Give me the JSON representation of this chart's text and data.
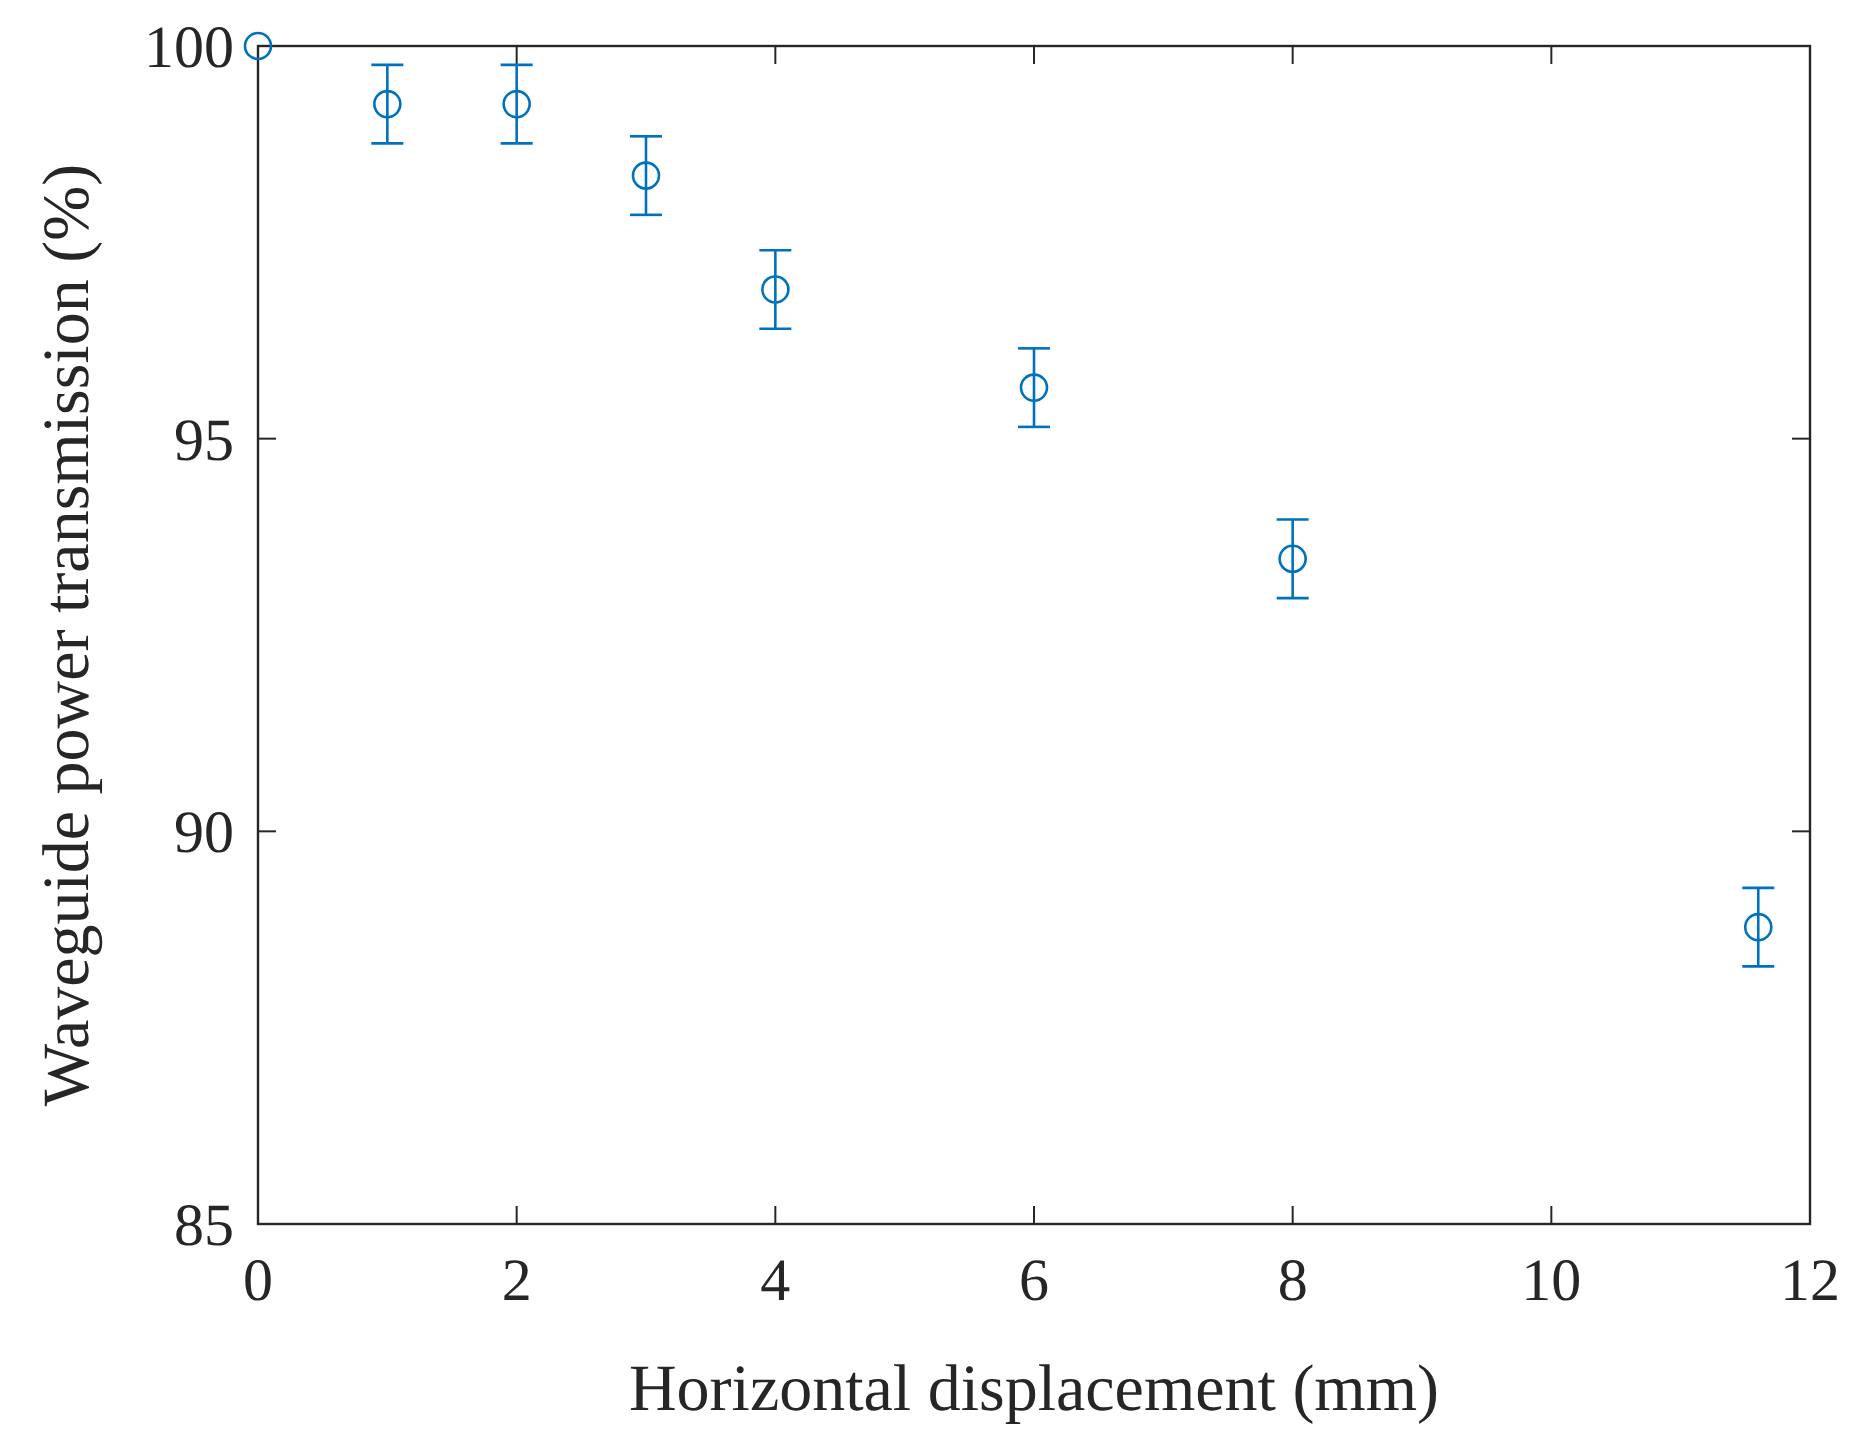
{
  "chart_data": {
    "type": "scatter",
    "xlabel": "Horizontal displacement (mm)",
    "ylabel": "Waveguide power transmission (%)",
    "x": [
      0,
      1,
      2,
      3,
      4,
      6,
      8,
      11.6
    ],
    "series": [
      {
        "color": "#0072bd",
        "values": [
          100,
          99.26,
          99.26,
          98.35,
          96.9,
          95.65,
          93.47,
          88.78
        ],
        "errors": [
          null,
          0.5,
          0.5,
          0.5,
          0.5,
          0.5,
          0.5,
          0.5
        ]
      }
    ],
    "xlim": [
      0,
      12
    ],
    "xticks": [
      0,
      2,
      4,
      6,
      8,
      10,
      12
    ],
    "ylim": [
      85,
      100
    ],
    "yticks": [
      85,
      90,
      95,
      100
    ],
    "marker": "circle"
  }
}
